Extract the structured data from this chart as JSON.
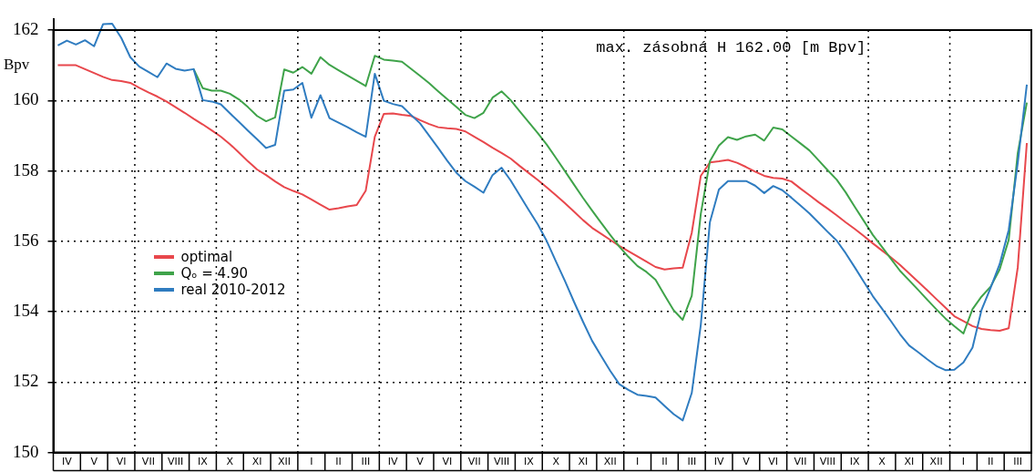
{
  "chart_data": {
    "type": "line",
    "ylabel": "Bpv",
    "annotations": [
      "max. zásobná H 162.00 [m Bpv]"
    ],
    "categories": [
      null,
      "IV",
      null,
      null,
      "V",
      null,
      null,
      "VI",
      null,
      null,
      "VII",
      null,
      null,
      "VIII",
      null,
      null,
      "IX",
      null,
      null,
      "X",
      null,
      null,
      "XI",
      null,
      null,
      "XII",
      null,
      null,
      "I",
      null,
      null,
      "II",
      null,
      null,
      "III",
      null,
      null,
      "IV",
      null,
      null,
      "V",
      null,
      null,
      "VI",
      null,
      null,
      "VII",
      null,
      null,
      "VIII",
      null,
      null,
      "IX",
      null,
      null,
      "X",
      null,
      null,
      "XI",
      null,
      null,
      "XII",
      null,
      null,
      "I",
      null,
      null,
      "II",
      null,
      null,
      "III",
      null,
      null,
      "IV",
      null,
      null,
      "V",
      null,
      null,
      "VI",
      null,
      null,
      "VII",
      null,
      null,
      "VIII",
      null,
      null,
      "IX",
      null,
      null,
      "X",
      null,
      null,
      "XI",
      null,
      null,
      "XII",
      null,
      null,
      "I",
      null,
      null,
      "II",
      null,
      null,
      "III",
      null
    ],
    "ylim": [
      150,
      162.3
    ],
    "yticks": [
      150,
      152,
      154,
      156,
      158,
      160,
      162
    ],
    "grid": true,
    "legend": "left",
    "series": [
      {
        "name": "optimal",
        "color": "#e8474c",
        "values": [
          161.0,
          161.0,
          161.0,
          160.89,
          160.78,
          160.67,
          160.58,
          160.55,
          160.5,
          160.36,
          160.23,
          160.11,
          159.97,
          159.81,
          159.65,
          159.48,
          159.32,
          159.15,
          158.97,
          158.76,
          158.52,
          158.27,
          158.04,
          157.88,
          157.7,
          157.54,
          157.43,
          157.33,
          157.19,
          157.04,
          156.9,
          156.94,
          156.99,
          157.03,
          157.44,
          158.97,
          159.62,
          159.63,
          159.59,
          159.56,
          159.44,
          159.33,
          159.24,
          159.21,
          159.19,
          159.12,
          158.97,
          158.82,
          158.66,
          158.51,
          158.35,
          158.14,
          157.94,
          157.74,
          157.53,
          157.31,
          157.08,
          156.84,
          156.6,
          156.38,
          156.21,
          156.04,
          155.87,
          155.72,
          155.57,
          155.42,
          155.27,
          155.2,
          155.23,
          155.25,
          156.24,
          157.86,
          158.24,
          158.27,
          158.31,
          158.23,
          158.11,
          157.98,
          157.86,
          157.8,
          157.78,
          157.7,
          157.5,
          157.31,
          157.11,
          156.93,
          156.74,
          156.54,
          156.35,
          156.15,
          155.94,
          155.74,
          155.54,
          155.33,
          155.09,
          154.85,
          154.61,
          154.36,
          154.12,
          153.87,
          153.73,
          153.59,
          153.51,
          153.48,
          153.46,
          153.53,
          155.26,
          158.79
        ]
      },
      {
        "name": "Qₒ = 4.90",
        "color": "#3fa34a",
        "values": [
          null,
          null,
          null,
          null,
          null,
          null,
          null,
          null,
          null,
          null,
          null,
          null,
          null,
          null,
          null,
          160.89,
          160.35,
          160.28,
          160.28,
          160.19,
          160.03,
          159.81,
          159.56,
          159.41,
          159.52,
          160.88,
          160.79,
          160.95,
          160.76,
          161.23,
          161.01,
          160.86,
          160.71,
          160.56,
          160.41,
          161.27,
          161.16,
          161.13,
          161.1,
          160.9,
          160.7,
          160.49,
          160.26,
          160.04,
          159.82,
          159.59,
          159.5,
          159.65,
          160.08,
          160.26,
          160.01,
          159.69,
          159.38,
          159.07,
          158.74,
          158.37,
          157.99,
          157.61,
          157.23,
          156.87,
          156.52,
          156.18,
          155.85,
          155.56,
          155.3,
          155.13,
          154.91,
          154.47,
          154.04,
          153.77,
          154.45,
          156.78,
          158.27,
          158.72,
          158.96,
          158.88,
          158.98,
          159.03,
          158.86,
          159.23,
          159.18,
          158.98,
          158.78,
          158.58,
          158.3,
          158.02,
          157.75,
          157.39,
          156.98,
          156.58,
          156.18,
          155.84,
          155.5,
          155.16,
          154.89,
          154.62,
          154.34,
          154.07,
          153.81,
          153.59,
          153.38,
          154.07,
          154.43,
          154.71,
          155.2,
          156.04,
          158.51,
          159.94
        ]
      },
      {
        "name": "real 2010-2012",
        "color": "#2f7cc0",
        "values": [
          161.56,
          161.7,
          161.59,
          161.71,
          161.54,
          162.17,
          162.18,
          161.78,
          161.23,
          160.96,
          160.81,
          160.66,
          161.05,
          160.9,
          160.85,
          160.89,
          160.01,
          159.97,
          159.89,
          159.64,
          159.39,
          159.14,
          158.9,
          158.65,
          158.74,
          160.28,
          160.31,
          160.5,
          159.51,
          160.15,
          159.5,
          159.37,
          159.24,
          159.1,
          158.97,
          160.76,
          159.99,
          159.9,
          159.84,
          159.59,
          159.35,
          159.0,
          158.65,
          158.29,
          157.95,
          157.71,
          157.55,
          157.38,
          157.88,
          158.09,
          157.73,
          157.31,
          156.89,
          156.48,
          156.0,
          155.43,
          154.87,
          154.28,
          153.71,
          153.17,
          152.74,
          152.32,
          151.94,
          151.78,
          151.64,
          151.61,
          151.56,
          151.32,
          151.09,
          150.91,
          151.69,
          153.63,
          156.54,
          157.47,
          157.71,
          157.71,
          157.71,
          157.58,
          157.37,
          157.57,
          157.45,
          157.24,
          157.02,
          156.79,
          156.53,
          156.27,
          156.02,
          155.66,
          155.26,
          154.85,
          154.44,
          154.09,
          153.73,
          153.36,
          153.04,
          152.85,
          152.65,
          152.46,
          152.34,
          152.35,
          152.56,
          152.98,
          154.05,
          154.68,
          155.35,
          156.32,
          158.23,
          160.45
        ]
      }
    ]
  }
}
